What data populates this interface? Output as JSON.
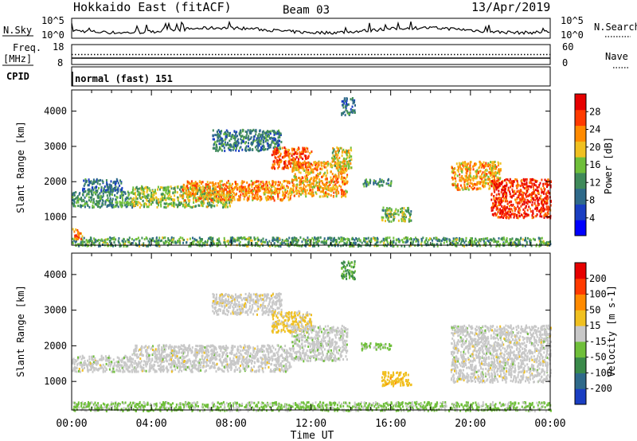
{
  "header": {
    "title": "Hokkaido East (fitACF)",
    "beam": "Beam 03",
    "date": "13/Apr/2019"
  },
  "labels": {
    "nsky": "N.Sky",
    "nsearch": "N.Search",
    "freq_line1": "Freq.",
    "freq_line2": "[MHz]",
    "nave": "Nave",
    "cpid": "CPID",
    "cpid_value": "normal (fast) 151"
  },
  "noise_panel": {
    "ymin_label": "10^0",
    "ymax_label": "10^5"
  },
  "freq_panel": {
    "freq_ticks": [
      "18",
      "8"
    ],
    "nave_ticks": [
      "60",
      "0"
    ],
    "freq_value_mhz": 11.2,
    "nave_value": 30
  },
  "colors": {
    "power_scale": [
      "#0000ff",
      "#1a3ec2",
      "#2f6a8a",
      "#3f8a5a",
      "#6fbf3a",
      "#f0c020",
      "#ff8a00",
      "#ff3a00",
      "#e60000"
    ],
    "velocity_scale": [
      "#1a3ec2",
      "#2f6a8a",
      "#3a8a4a",
      "#6fbf3a",
      "#c8c8c8",
      "#f0c020",
      "#ff8a00",
      "#ff3a00",
      "#e60000"
    ]
  },
  "chart_data": [
    {
      "type": "heatmap",
      "name": "power",
      "ylabel": "Slant Range [km]",
      "xlabel": "",
      "xlim": [
        0,
        24
      ],
      "ylim": [
        200,
        4600
      ],
      "x_ticks": [
        "00:00",
        "04:00",
        "08:00",
        "12:00",
        "16:00",
        "20:00",
        "00:00"
      ],
      "y_ticks": [
        1000,
        2000,
        3000,
        4000
      ],
      "colorbar": {
        "label": "Power [dB]",
        "ticks": [
          "4",
          "8",
          "12",
          "16",
          "20",
          "24",
          "28"
        ],
        "range": [
          0,
          31
        ]
      },
      "regions": [
        {
          "t0": 0.0,
          "t1": 3.0,
          "r0": 1300,
          "r1": 1750,
          "v": 12
        },
        {
          "t0": 0.5,
          "t1": 2.5,
          "r0": 1750,
          "r1": 2100,
          "v": 9
        },
        {
          "t0": 3.0,
          "t1": 8.0,
          "r0": 1300,
          "r1": 1900,
          "v": 16
        },
        {
          "t0": 5.5,
          "t1": 11.0,
          "r0": 1500,
          "r1": 2050,
          "v": 22
        },
        {
          "t0": 7.0,
          "t1": 10.5,
          "r0": 2900,
          "r1": 3500,
          "v": 10
        },
        {
          "t0": 10.0,
          "t1": 12.0,
          "r0": 2400,
          "r1": 3000,
          "v": 25
        },
        {
          "t0": 11.0,
          "t1": 13.8,
          "r0": 1600,
          "r1": 2600,
          "v": 21
        },
        {
          "t0": 13.0,
          "t1": 14.0,
          "r0": 2400,
          "r1": 3000,
          "v": 18
        },
        {
          "t0": 14.5,
          "t1": 16.0,
          "r0": 1900,
          "r1": 2100,
          "v": 11
        },
        {
          "t0": 15.5,
          "t1": 17.0,
          "r0": 900,
          "r1": 1300,
          "v": 15
        },
        {
          "t0": 19.0,
          "t1": 21.5,
          "r0": 1800,
          "r1": 2600,
          "v": 21
        },
        {
          "t0": 21.0,
          "t1": 24.0,
          "r0": 1000,
          "r1": 2100,
          "v": 27
        },
        {
          "t0": 0.0,
          "t1": 24.0,
          "r0": 200,
          "r1": 450,
          "v": 13
        },
        {
          "t0": 13.5,
          "t1": 14.2,
          "r0": 3900,
          "r1": 4400,
          "v": 9
        },
        {
          "t0": 0.0,
          "t1": 0.5,
          "r0": 400,
          "r1": 700,
          "v": 24
        }
      ]
    },
    {
      "type": "heatmap",
      "name": "velocity",
      "ylabel": "Slant Range [km]",
      "xlabel": "Time UT",
      "xlim": [
        0,
        24
      ],
      "ylim": [
        200,
        4600
      ],
      "x_ticks": [
        "00:00",
        "04:00",
        "08:00",
        "12:00",
        "16:00",
        "20:00",
        "00:00"
      ],
      "y_ticks": [
        1000,
        2000,
        3000,
        4000
      ],
      "colorbar": {
        "label": "Velocity [m s-1]",
        "ticks": [
          "200",
          "100",
          "50",
          "15",
          "-15",
          "-50",
          "-100",
          "-200"
        ],
        "range": [
          -250,
          250
        ]
      },
      "regions": [
        {
          "t0": 0.0,
          "t1": 3.0,
          "r0": 1300,
          "r1": 1750,
          "v": 0
        },
        {
          "t0": 3.0,
          "t1": 11.0,
          "r0": 1300,
          "r1": 2050,
          "v": 0
        },
        {
          "t0": 7.0,
          "t1": 10.5,
          "r0": 2900,
          "r1": 3500,
          "v": 5
        },
        {
          "t0": 10.0,
          "t1": 12.0,
          "r0": 2400,
          "r1": 3000,
          "v": 40
        },
        {
          "t0": 11.0,
          "t1": 13.8,
          "r0": 1600,
          "r1": 2600,
          "v": -5
        },
        {
          "t0": 14.5,
          "t1": 16.0,
          "r0": 1900,
          "r1": 2100,
          "v": -40
        },
        {
          "t0": 15.5,
          "t1": 17.0,
          "r0": 900,
          "r1": 1300,
          "v": 60
        },
        {
          "t0": 19.0,
          "t1": 24.0,
          "r0": 1000,
          "r1": 2600,
          "v": 0
        },
        {
          "t0": 0.0,
          "t1": 24.0,
          "r0": 200,
          "r1": 450,
          "v": -40
        },
        {
          "t0": 13.5,
          "t1": 14.2,
          "r0": 3900,
          "r1": 4400,
          "v": -80
        }
      ]
    }
  ]
}
